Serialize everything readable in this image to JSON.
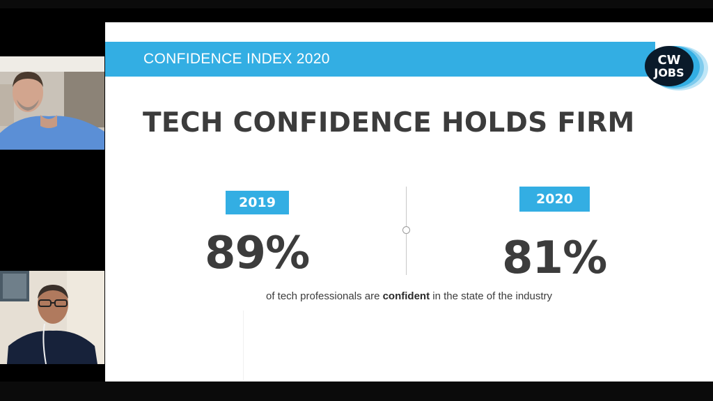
{
  "slide": {
    "header_title": "CONFIDENCE INDEX 2020",
    "logo": {
      "line1": "CW",
      "line2": "JOBS",
      "icon": "cw-jobs-logo"
    },
    "headline": "TECH CONFIDENCE HOLDS FIRM",
    "left_stat": {
      "year": "2019",
      "value": "89%"
    },
    "right_stat": {
      "year": "2020",
      "value": "81%"
    },
    "caption": {
      "before": "of tech professionals are ",
      "emphasis": "confident",
      "after": " in the state of the industry"
    }
  },
  "participants": [
    {
      "icon": "participant-video"
    },
    {
      "icon": "participant-video"
    }
  ],
  "colors": {
    "accent": "#33aee3",
    "text_dark": "#3c3c3c",
    "logo_dark": "#0a1a2a",
    "background": "#ffffff",
    "frame": "#000000"
  }
}
